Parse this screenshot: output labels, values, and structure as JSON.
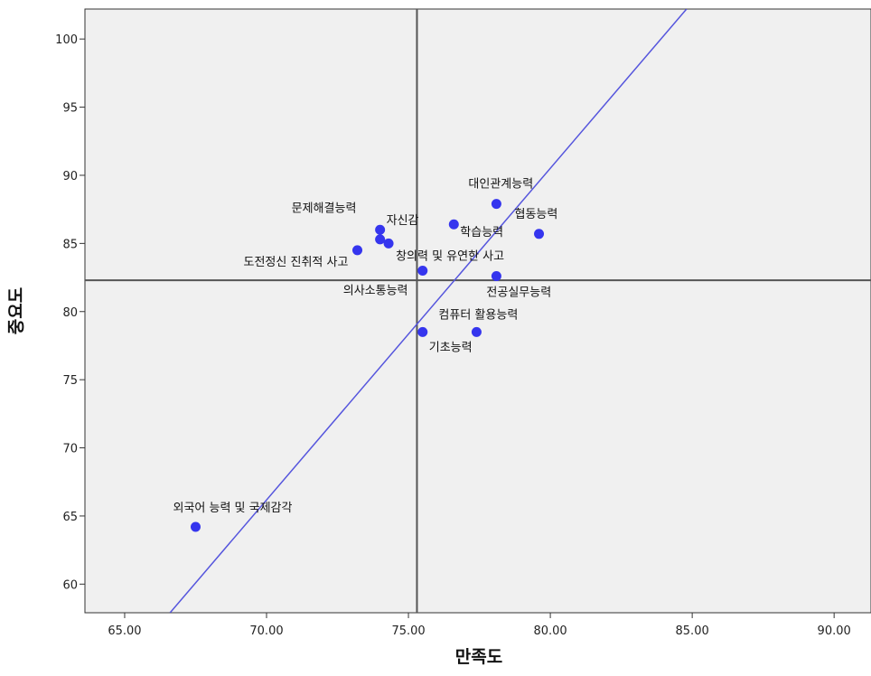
{
  "chart_data": {
    "type": "scatter",
    "xlabel": "만족도",
    "ylabel": "중요도",
    "xlim": [
      63.6,
      91.3
    ],
    "ylim": [
      57.9,
      102.2
    ],
    "x_ticks": [
      "65.00",
      "70.00",
      "75.00",
      "80.00",
      "85.00",
      "90.00"
    ],
    "x_tick_values": [
      65,
      70,
      75,
      80,
      85,
      90
    ],
    "y_ticks": [
      "60",
      "65",
      "70",
      "75",
      "80",
      "85",
      "90",
      "95",
      "100"
    ],
    "y_tick_values": [
      60,
      65,
      70,
      75,
      80,
      85,
      90,
      95,
      100
    ],
    "grid": false,
    "reference_lines": {
      "x_mean": 75.3,
      "y_mean": 82.3
    },
    "fit_line": [
      [
        66.6,
        57.9
      ],
      [
        84.8,
        102.2
      ]
    ],
    "points": [
      {
        "label": "외국어 능력 및 국제감각",
        "x": 67.5,
        "y": 64.2
      },
      {
        "label": "문제해결능력",
        "x": 74.0,
        "y": 86.0
      },
      {
        "label": "자신감",
        "x": 74.0,
        "y": 85.3
      },
      {
        "label": "도전정신 진취적 사고",
        "x": 73.2,
        "y": 84.5
      },
      {
        "label": "창의력 및 유연한 사고",
        "x": 74.3,
        "y": 85.0
      },
      {
        "label": "의사소통능력",
        "x": 75.5,
        "y": 83.0
      },
      {
        "label": "기초능력",
        "x": 75.5,
        "y": 78.5
      },
      {
        "label": "학습능력",
        "x": 76.6,
        "y": 86.4
      },
      {
        "label": "대인관계능력",
        "x": 78.1,
        "y": 87.9
      },
      {
        "label": "협동능력",
        "x": 79.6,
        "y": 85.7
      },
      {
        "label": "전공실무능력",
        "x": 78.1,
        "y": 82.6
      },
      {
        "label": "컴퓨터 활용능력",
        "x": 77.4,
        "y": 78.5
      }
    ],
    "colors": {
      "plot_bg": "#f0f0f0",
      "point": "#3535ee",
      "fit_line": "#5555dd",
      "ref_line": "#555555"
    }
  }
}
